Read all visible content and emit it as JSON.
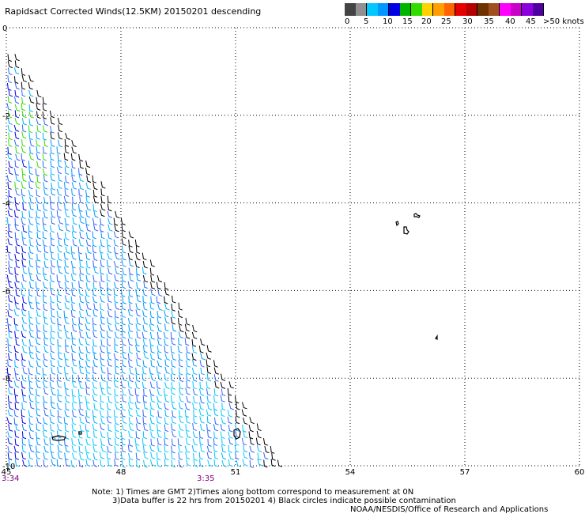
{
  "title": "Rapidsact Corrected Winds(12.5KM) 20150201 descending",
  "legend": {
    "colors": [
      "#444444",
      "#909090",
      "#00c8ff",
      "#0096ff",
      "#0000e6",
      "#00b400",
      "#32dc00",
      "#ffd200",
      "#ffa000",
      "#ff6400",
      "#e60000",
      "#b40000",
      "#6e3200",
      "#a0501e",
      "#ff00ff",
      "#c800c8",
      "#8c00dc",
      "#5000a0"
    ],
    "labels": [
      "0",
      "5",
      "10",
      "15",
      "20",
      "25",
      "30",
      "35",
      "40",
      "45",
      ">50 knots"
    ]
  },
  "chart_data": {
    "type": "map",
    "xlim": [
      45,
      60
    ],
    "ylim": [
      -10,
      0
    ],
    "x_ticks": [
      45,
      48,
      51,
      54,
      57,
      60
    ],
    "x_tick_labels": [
      "45",
      "48",
      "51",
      "54",
      "57",
      "60"
    ],
    "y_ticks": [
      0,
      -2,
      -4,
      -6,
      -8,
      -10
    ],
    "y_tick_labels": [
      "0",
      "-2",
      "-4",
      "-6",
      "-8",
      "-10"
    ],
    "grid": true,
    "grid_style": "dotted",
    "swath": {
      "description": "wind barbs, descending pass",
      "lon_min": 45,
      "lon_max_at_south": 52.3,
      "lat_top": -0.6,
      "lat_bottom": -10
    },
    "wind_speed_units": "knots"
  },
  "times": {
    "left": "3:34",
    "center": "3:35"
  },
  "notes": {
    "line1": "Note: 1) Times are GMT 2)Times along bottom correspond to measurement at 0N",
    "line2": "3)Data buffer is 22 hrs from 20150201 4) Black circles indicate possible contamination",
    "line3": "NOAA/NESDIS/Office of Research and Applications"
  }
}
